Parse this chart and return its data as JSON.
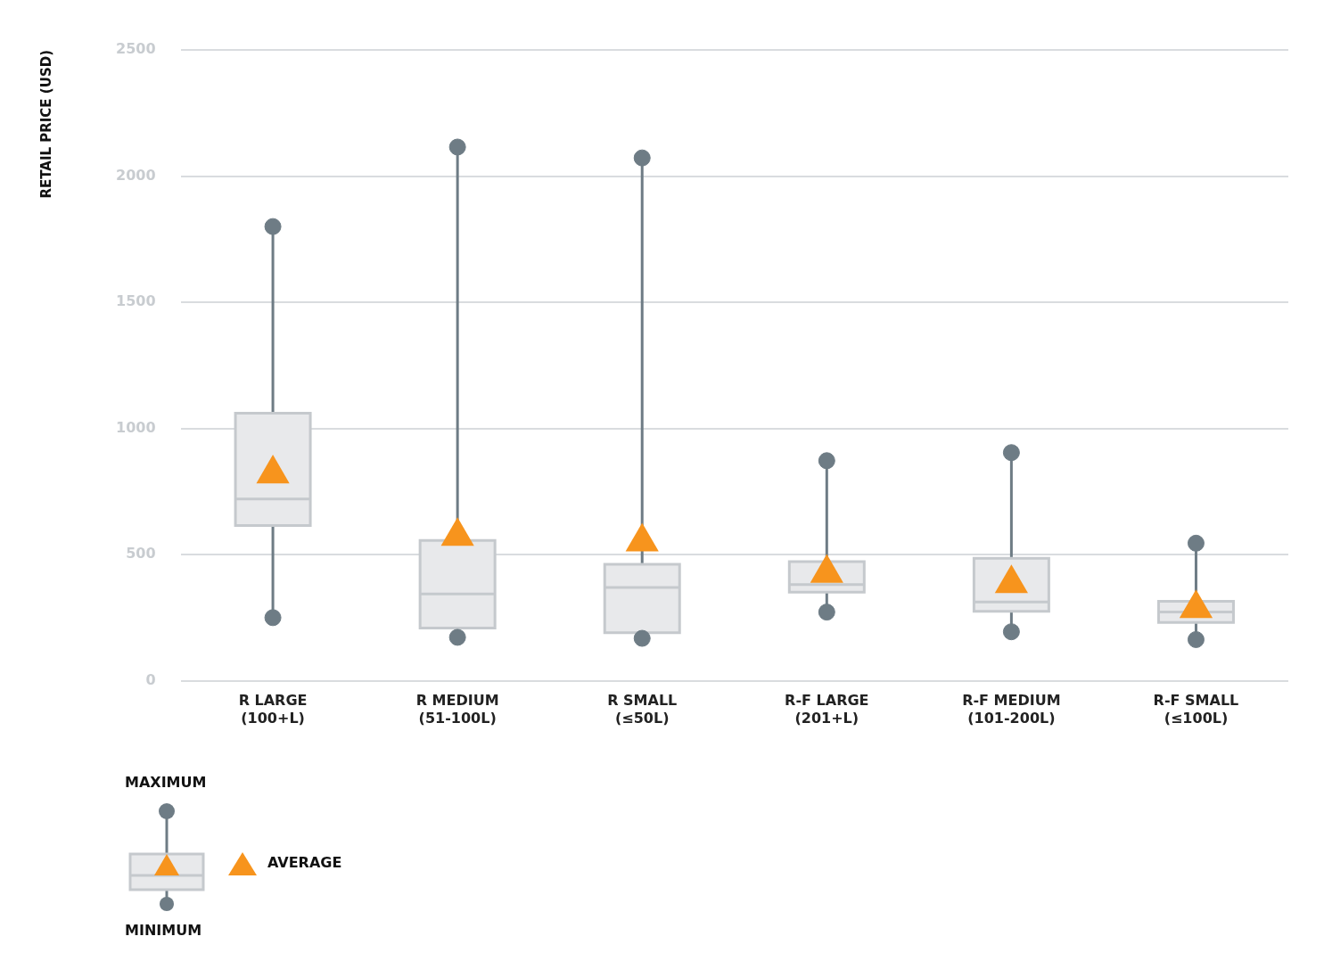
{
  "chart_data": {
    "type": "box",
    "ylabel": "RETAIL PRICE (USD)",
    "categories": [
      "R LARGE (100+L)",
      "R MEDIUM (51-100L)",
      "R SMALL (≤50L)",
      "R-F LARGE (201+L)",
      "R-F MEDIUM (101-200L)",
      "R-F SMALL (≤100L)"
    ],
    "color": "#e8e9eb",
    "boxes": [
      {
        "low": 250,
        "q1": 615,
        "median": 720,
        "q3": 1060,
        "high": 1800,
        "mean": 830
      },
      {
        "low": 172,
        "q1": 209,
        "median": 344,
        "q3": 556,
        "high": 2115,
        "mean": 582
      },
      {
        "low": 168,
        "q1": 190,
        "median": 370,
        "q3": 461,
        "high": 2072,
        "mean": 560
      },
      {
        "low": 272,
        "q1": 351,
        "median": 381,
        "q3": 472,
        "high": 872,
        "mean": 436
      },
      {
        "low": 194,
        "q1": 275,
        "median": 312,
        "q3": 485,
        "high": 904,
        "mean": 395
      },
      {
        "low": 163,
        "q1": 231,
        "median": 272,
        "q3": 315,
        "high": 545,
        "mean": 296
      }
    ],
    "ylim": [
      0,
      2500
    ],
    "yticks": [
      0,
      500,
      1000,
      1500,
      2000,
      2500
    ],
    "series": [
      {
        "type": "scatter",
        "color": "#6e7c85",
        "x": [
          "R LARGE (100+L)",
          "R MEDIUM (51-100L)",
          "R SMALL (≤50L)",
          "R-F LARGE (201+L)",
          "R-F MEDIUM (101-200L)",
          "R-F SMALL (≤100L)"
        ],
        "values": [
          1800,
          2115,
          2072,
          872,
          904,
          545
        ]
      },
      {
        "type": "scatter",
        "color": "#6e7c85",
        "x": [
          "R LARGE (100+L)",
          "R MEDIUM (51-100L)",
          "R SMALL (≤50L)",
          "R-F LARGE (201+L)",
          "R-F MEDIUM (101-200L)",
          "R-F SMALL (≤100L)"
        ],
        "values": [
          250,
          172,
          168,
          272,
          194,
          163
        ]
      }
    ],
    "marker": "circle",
    "grid": "y",
    "annotations": [
      "MAXIMUM",
      "AVERAGE",
      "MINIMUM"
    ]
  }
}
